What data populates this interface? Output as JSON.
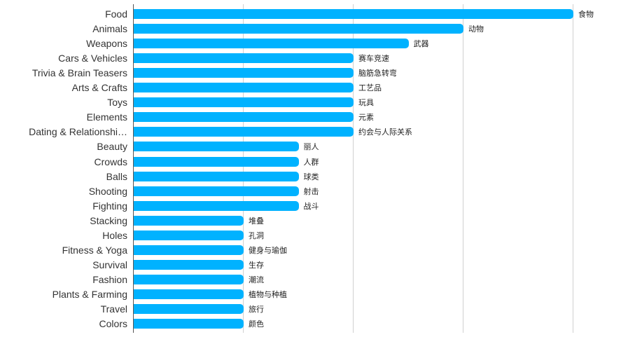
{
  "chart_data": {
    "type": "bar",
    "orientation": "horizontal",
    "title": "",
    "xlabel": "",
    "ylabel": "",
    "xlim": [
      0,
      4
    ],
    "grid": true,
    "gridlines_x": [
      1,
      2,
      3,
      4
    ],
    "show_tick_labels_x": false,
    "bar_color": "#00b2ff",
    "categories": [
      "Food",
      "Animals",
      "Weapons",
      "Cars & Vehicles",
      "Trivia & Brain Teasers",
      "Arts & Crafts",
      "Toys",
      "Elements",
      "Dating & Relationshi…",
      "Beauty",
      "Crowds",
      "Balls",
      "Shooting",
      "Fighting",
      "Stacking",
      "Holes",
      "Fitness & Yoga",
      "Survival",
      "Fashion",
      "Plants & Farming",
      "Travel",
      "Colors"
    ],
    "data_labels": [
      "食物",
      "动物",
      "武器",
      "赛车竞速",
      "脑筋急转弯",
      "工艺品",
      "玩具",
      "元素",
      "约会与人际关系",
      "丽人",
      "人群",
      "球类",
      "射击",
      "战斗",
      "堆叠",
      "孔洞",
      "健身与瑜伽",
      "生存",
      "潮流",
      "植物与种植",
      "旅行",
      "颜色"
    ],
    "values": [
      4,
      3,
      2.5,
      2,
      2,
      2,
      2,
      2,
      2,
      1.5,
      1.5,
      1.5,
      1.5,
      1.5,
      1,
      1,
      1,
      1,
      1,
      1,
      1,
      1
    ]
  }
}
